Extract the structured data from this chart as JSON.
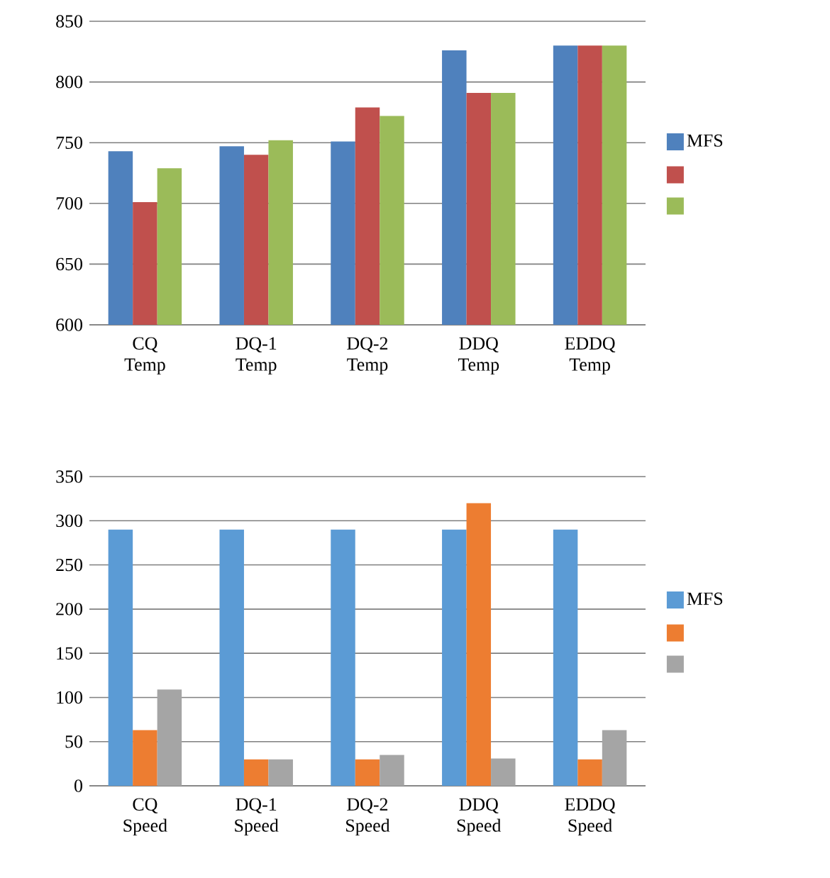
{
  "chart_data": [
    {
      "type": "bar",
      "categories": [
        "CQ Temp",
        "DQ-1 Temp",
        "DQ-2 Temp",
        "DDQ Temp",
        "EDDQ Temp"
      ],
      "ylim": [
        600,
        850
      ],
      "yticks": [
        600,
        650,
        700,
        750,
        800,
        850
      ],
      "grid": "y",
      "legend": "right",
      "series": [
        {
          "name": "MFS",
          "color": "#4f81bd",
          "values": [
            743,
            747,
            751,
            826,
            830
          ]
        },
        {
          "color": "#c0504d",
          "values": [
            701,
            740,
            779,
            791,
            830
          ]
        },
        {
          "color": "#9bbb59",
          "values": [
            729,
            752,
            772,
            791,
            830
          ]
        }
      ]
    },
    {
      "type": "bar",
      "categories": [
        "CQ Speed",
        "DQ-1 Speed",
        "DQ-2 Speed",
        "DDQ Speed",
        "EDDQ Speed"
      ],
      "ylim": [
        0,
        350
      ],
      "yticks": [
        0,
        50,
        100,
        150,
        200,
        250,
        300,
        350
      ],
      "grid": "y",
      "legend": "right",
      "series": [
        {
          "name": "MFS",
          "color": "#5b9bd5",
          "values": [
            290,
            290,
            290,
            290,
            290
          ]
        },
        {
          "color": "#ed7d31",
          "values": [
            63,
            30,
            30,
            320,
            30
          ]
        },
        {
          "color": "#a5a5a5",
          "values": [
            109,
            30,
            35,
            31,
            63
          ]
        }
      ]
    }
  ]
}
